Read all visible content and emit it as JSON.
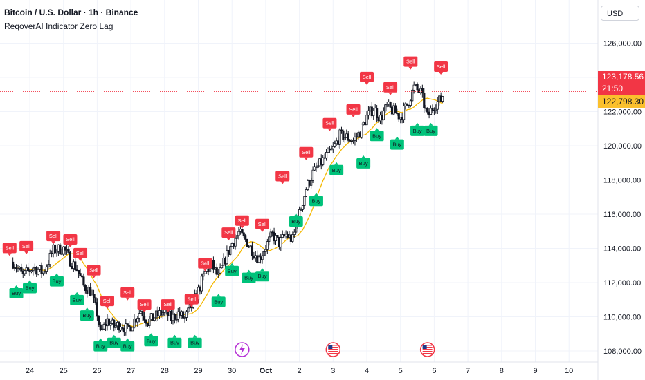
{
  "header": {
    "symbol_line": "Bitcoin / U.S. Dollar · 1h · Binance",
    "indicator_line": "ReqoverAI Indicator Zero Lag"
  },
  "currency_button": {
    "label": "USD"
  },
  "price_tag": {
    "price": "123,178.56",
    "countdown": "21:50",
    "color": "#f23645"
  },
  "ma_tag": {
    "value": "122,798.30",
    "color": "#fbc02d"
  },
  "icons": [
    "lightning-event-icon",
    "us-flag-icon",
    "us-flag-icon"
  ],
  "chart_data": {
    "type": "candlestick",
    "title": "",
    "yticks": [
      "126,000.00",
      "124,000.00",
      "122,000.00",
      "120,000.00",
      "118,000.00",
      "116,000.00",
      "114,000.00",
      "112,000.00",
      "110,000.00",
      "108,000.00"
    ],
    "xticks": [
      "24",
      "25",
      "26",
      "27",
      "28",
      "29",
      "30",
      "Oct",
      "2",
      "3",
      "4",
      "5",
      "6",
      "7",
      "8",
      "9",
      "10"
    ],
    "ylim": [
      107700,
      126800
    ],
    "current_price": 123178.56,
    "ma_value": 122798.3,
    "colors": {
      "up": "#ffffff",
      "down": "#131722",
      "buy": "#00c27a",
      "sell": "#f23645",
      "ma": "#f5b800"
    },
    "price_path": [
      [
        23.5,
        113200
      ],
      [
        23.8,
        112400
      ],
      [
        24.1,
        112900
      ],
      [
        24.4,
        112600
      ],
      [
        24.7,
        113900
      ],
      [
        25.0,
        114000
      ],
      [
        25.2,
        113300
      ],
      [
        25.4,
        112800
      ],
      [
        25.6,
        111800
      ],
      [
        25.8,
        111500
      ],
      [
        26.0,
        110200
      ],
      [
        26.1,
        109000
      ],
      [
        26.3,
        109800
      ],
      [
        26.5,
        109400
      ],
      [
        26.7,
        109600
      ],
      [
        26.9,
        109200
      ],
      [
        27.1,
        109800
      ],
      [
        27.3,
        110400
      ],
      [
        27.5,
        109700
      ],
      [
        27.7,
        110000
      ],
      [
        28.0,
        110300
      ],
      [
        28.2,
        109900
      ],
      [
        28.4,
        110200
      ],
      [
        28.6,
        109900
      ],
      [
        28.8,
        110600
      ],
      [
        29.0,
        111500
      ],
      [
        29.2,
        112600
      ],
      [
        29.4,
        113000
      ],
      [
        29.6,
        112300
      ],
      [
        29.8,
        113400
      ],
      [
        30.0,
        114300
      ],
      [
        30.2,
        114900
      ],
      [
        30.4,
        114500
      ],
      [
        30.6,
        113900
      ],
      [
        30.8,
        113400
      ],
      [
        31.0,
        114100
      ],
      [
        31.2,
        114800
      ],
      [
        31.4,
        114300
      ],
      [
        31.6,
        114800
      ],
      [
        31.8,
        114500
      ],
      [
        32.0,
        116000
      ],
      [
        32.2,
        117500
      ],
      [
        32.4,
        118400
      ],
      [
        32.6,
        118900
      ],
      [
        32.8,
        119400
      ],
      [
        33.0,
        119800
      ],
      [
        33.2,
        120600
      ],
      [
        33.4,
        120500
      ],
      [
        33.6,
        120300
      ],
      [
        33.8,
        120800
      ],
      [
        34.0,
        121700
      ],
      [
        34.2,
        122200
      ],
      [
        34.4,
        121600
      ],
      [
        34.6,
        122300
      ],
      [
        34.8,
        122000
      ],
      [
        35.0,
        121700
      ],
      [
        35.2,
        122400
      ],
      [
        35.4,
        123400
      ],
      [
        35.6,
        123100
      ],
      [
        35.8,
        121700
      ],
      [
        36.0,
        122400
      ],
      [
        36.2,
        122700
      ],
      [
        36.3,
        123200
      ]
    ],
    "signals": [
      {
        "type": "Sell",
        "x": 23.4,
        "price": 113600
      },
      {
        "type": "Buy",
        "x": 23.6,
        "price": 111800
      },
      {
        "type": "Sell",
        "x": 23.9,
        "price": 113700
      },
      {
        "type": "Buy",
        "x": 24.0,
        "price": 112100
      },
      {
        "type": "Sell",
        "x": 24.7,
        "price": 114300
      },
      {
        "type": "Buy",
        "x": 24.8,
        "price": 112500
      },
      {
        "type": "Sell",
        "x": 25.2,
        "price": 114100
      },
      {
        "type": "Sell",
        "x": 25.5,
        "price": 113300
      },
      {
        "type": "Buy",
        "x": 25.4,
        "price": 111400
      },
      {
        "type": "Sell",
        "x": 25.9,
        "price": 112300
      },
      {
        "type": "Buy",
        "x": 25.7,
        "price": 110500
      },
      {
        "type": "Buy",
        "x": 26.1,
        "price": 108700
      },
      {
        "type": "Sell",
        "x": 26.3,
        "price": 110500
      },
      {
        "type": "Buy",
        "x": 26.5,
        "price": 108900
      },
      {
        "type": "Sell",
        "x": 26.9,
        "price": 111000
      },
      {
        "type": "Buy",
        "x": 26.9,
        "price": 108700
      },
      {
        "type": "Sell",
        "x": 27.4,
        "price": 110300
      },
      {
        "type": "Buy",
        "x": 27.6,
        "price": 109000
      },
      {
        "type": "Sell",
        "x": 28.1,
        "price": 110300
      },
      {
        "type": "Buy",
        "x": 28.3,
        "price": 108900
      },
      {
        "type": "Sell",
        "x": 28.8,
        "price": 110600
      },
      {
        "type": "Buy",
        "x": 28.9,
        "price": 108900
      },
      {
        "type": "Sell",
        "x": 29.2,
        "price": 112700
      },
      {
        "type": "Buy",
        "x": 29.6,
        "price": 111300
      },
      {
        "type": "Sell",
        "x": 29.9,
        "price": 114500
      },
      {
        "type": "Buy",
        "x": 30.0,
        "price": 113100
      },
      {
        "type": "Sell",
        "x": 30.3,
        "price": 115200
      },
      {
        "type": "Buy",
        "x": 30.5,
        "price": 112700
      },
      {
        "type": "Sell",
        "x": 30.9,
        "price": 115000
      },
      {
        "type": "Buy",
        "x": 30.9,
        "price": 112800
      },
      {
        "type": "Sell",
        "x": 31.5,
        "price": 117800
      },
      {
        "type": "Buy",
        "x": 31.9,
        "price": 116000
      },
      {
        "type": "Sell",
        "x": 32.2,
        "price": 119200
      },
      {
        "type": "Buy",
        "x": 32.5,
        "price": 117200
      },
      {
        "type": "Sell",
        "x": 32.9,
        "price": 120900
      },
      {
        "type": "Buy",
        "x": 33.1,
        "price": 119000
      },
      {
        "type": "Sell",
        "x": 33.6,
        "price": 121700
      },
      {
        "type": "Buy",
        "x": 33.9,
        "price": 119400
      },
      {
        "type": "Sell",
        "x": 34.0,
        "price": 123600
      },
      {
        "type": "Buy",
        "x": 34.3,
        "price": 121000
      },
      {
        "type": "Sell",
        "x": 34.7,
        "price": 123000
      },
      {
        "type": "Buy",
        "x": 34.9,
        "price": 120500
      },
      {
        "type": "Sell",
        "x": 35.3,
        "price": 124500
      },
      {
        "type": "Buy",
        "x": 35.5,
        "price": 121300
      },
      {
        "type": "Sell",
        "x": 36.2,
        "price": 124200
      },
      {
        "type": "Buy",
        "x": 35.9,
        "price": 121300
      }
    ]
  }
}
